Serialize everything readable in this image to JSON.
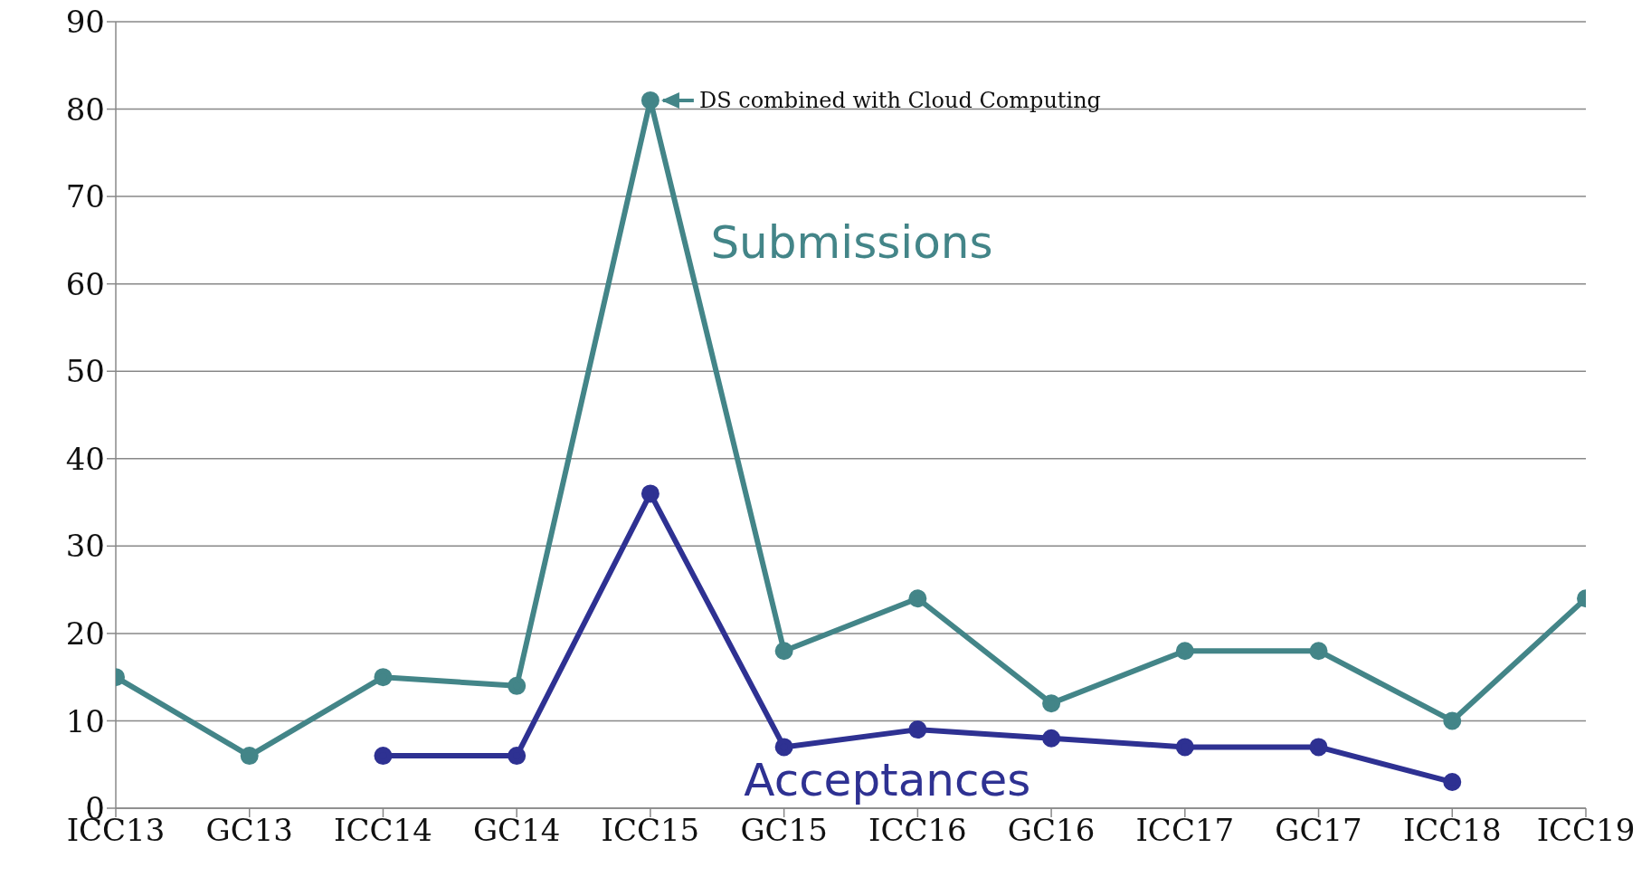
{
  "chart_data": {
    "type": "line",
    "categories": [
      "ICC13",
      "GC13",
      "ICC14",
      "GC14",
      "ICC15",
      "GC15",
      "ICC16",
      "GC16",
      "ICC17",
      "GC17",
      "ICC18",
      "ICC19"
    ],
    "series": [
      {
        "name": "Submissions",
        "color": "#438588",
        "values": [
          15,
          6,
          15,
          14,
          81,
          18,
          24,
          12,
          18,
          18,
          10,
          24
        ]
      },
      {
        "name": "Acceptances",
        "color": "#2e3192",
        "values": [
          null,
          null,
          6,
          6,
          36,
          7,
          9,
          8,
          7,
          7,
          3,
          null
        ]
      }
    ],
    "ylim": [
      0,
      90
    ],
    "yticks": [
      0,
      10,
      20,
      30,
      40,
      50,
      60,
      70,
      80,
      90
    ],
    "grid": "y",
    "legend": false,
    "marker": "circle",
    "line_style": "solid",
    "annotations": [
      {
        "text": "DS combined with Cloud Computing",
        "x": "ICC15",
        "y": 81
      }
    ]
  }
}
